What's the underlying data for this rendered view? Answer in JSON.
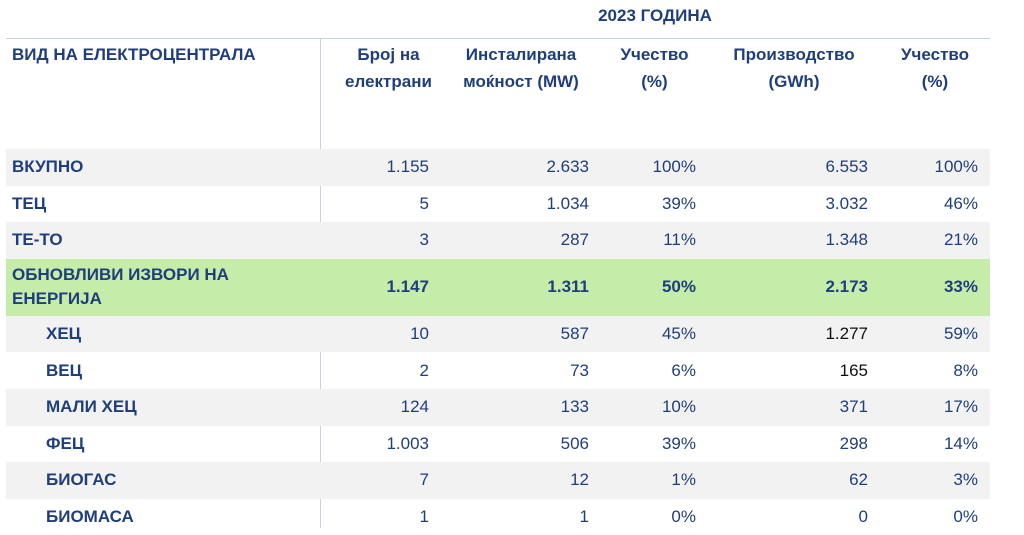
{
  "year_title": "2023 ГОДИНА",
  "headers": {
    "type": "ВИД НА ЕЛЕКТРОЦЕНТРАЛА",
    "plants": "Број на електрани",
    "capacity": "Инсталирана моќност (MW)",
    "share_capacity": "Учество (%)",
    "production": "Производство (GWh)",
    "share_production": "Учество (%)"
  },
  "rows": [
    {
      "label": "ВКУПНО",
      "plants": "1.155",
      "capacity": "2.633",
      "cap_share": "100%",
      "production": "6.553",
      "prod_share": "100%"
    },
    {
      "label": "ТЕЦ",
      "plants": "5",
      "capacity": "1.034",
      "cap_share": "39%",
      "production": "3.032",
      "prod_share": "46%"
    },
    {
      "label": "ТЕ-ТО",
      "plants": "3",
      "capacity": "287",
      "cap_share": "11%",
      "production": "1.348",
      "prod_share": "21%"
    },
    {
      "label": "ОБНОВЛИВИ ИЗВОРИ НА ЕНЕРГИЈА",
      "plants": "1.147",
      "capacity": "1.311",
      "cap_share": "50%",
      "production": "2.173",
      "prod_share": "33%"
    },
    {
      "label": "ХЕЦ",
      "plants": "10",
      "capacity": "587",
      "cap_share": "45%",
      "production": "1.277",
      "prod_share": "59%"
    },
    {
      "label": "ВЕЦ",
      "plants": "2",
      "capacity": "73",
      "cap_share": "6%",
      "production": "165",
      "prod_share": "8%"
    },
    {
      "label": "МАЛИ ХЕЦ",
      "plants": "124",
      "capacity": "133",
      "cap_share": "10%",
      "production": "371",
      "prod_share": "17%"
    },
    {
      "label": "ФЕЦ",
      "plants": "1.003",
      "capacity": "506",
      "cap_share": "39%",
      "production": "298",
      "prod_share": "14%"
    },
    {
      "label": "БИОГАС",
      "plants": "7",
      "capacity": "12",
      "cap_share": "1%",
      "production": "62",
      "prod_share": "3%"
    },
    {
      "label": "БИОМАСА",
      "plants": "1",
      "capacity": "1",
      "cap_share": "0%",
      "production": "0",
      "prod_share": "0%"
    }
  ],
  "colors": {
    "text": "#1f3e7c",
    "renewables_highlight": "#c6ecaa",
    "stripe": "#f2f2f2"
  }
}
